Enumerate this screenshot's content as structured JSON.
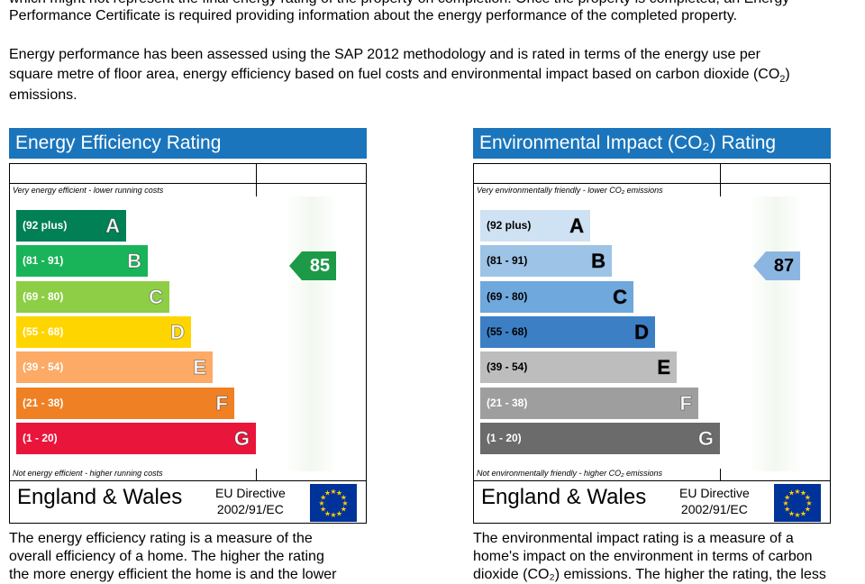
{
  "intro": {
    "line1": "which might not represent the final energy rating of the property on completion. Once the property is completed, an Energy",
    "line2": "Performance Certificate is required providing information about the energy performance of the completed property.",
    "line3": "Energy performance has been assessed using the SAP 2012 methodology and is rated in terms of the energy use per",
    "line4a": "square metre of floor area, energy efficiency based on fuel costs and environmental impact based on carbon dioxide (CO",
    "line4sub": "2",
    "line4b": ")",
    "line5": "emissions."
  },
  "charts": [
    {
      "title": "Energy Efficiency Rating",
      "top_label": "Very energy efficient - lower running costs",
      "bottom_label": "Not energy efficient - higher running costs",
      "score": "85",
      "score_color": "#1c9a48",
      "score_text_color": "#ffffff",
      "bands": [
        {
          "range": "(92 plus)",
          "letter": "A",
          "color": "#008054",
          "text": "#ffffff"
        },
        {
          "range": "(81 - 91)",
          "letter": "B",
          "color": "#19b459",
          "text": "#ffffff"
        },
        {
          "range": "(69 - 80)",
          "letter": "C",
          "color": "#8dce46",
          "text": "#ffffff"
        },
        {
          "range": "(55 - 68)",
          "letter": "D",
          "color": "#ffd500",
          "text": "#ffffff"
        },
        {
          "range": "(39 - 54)",
          "letter": "E",
          "color": "#fcaa65",
          "text": "#ffffff"
        },
        {
          "range": "(21 - 38)",
          "letter": "F",
          "color": "#ef8023",
          "text": "#ffffff"
        },
        {
          "range": "(1 - 20)",
          "letter": "G",
          "color": "#e9153b",
          "text": "#ffffff"
        }
      ],
      "region": "England & Wales",
      "directive_line1": "EU Directive",
      "directive_line2": "2002/91/EC",
      "desc_line1": "The energy efficiency rating is a measure of the",
      "desc_line2": "overall efficiency of a home. The higher the rating",
      "desc_line3": "the more energy efficient the home is and the lower"
    },
    {
      "title": "Environmental Impact (CO₂) Rating",
      "top_label": "Very environmentally friendly - lower CO₂ emissions",
      "bottom_label": "Not environmentally friendly - higher CO₂ emissions",
      "score": "87",
      "score_color": "#8cb6e2",
      "score_text_color": "#000000",
      "bands": [
        {
          "range": "(92 plus)",
          "letter": "A",
          "color": "#cfe2f3",
          "text": "#000000"
        },
        {
          "range": "(81 - 91)",
          "letter": "B",
          "color": "#9dc3e6",
          "text": "#000000"
        },
        {
          "range": "(69 - 80)",
          "letter": "C",
          "color": "#6fa8dc",
          "text": "#000000"
        },
        {
          "range": "(55 - 68)",
          "letter": "D",
          "color": "#3d7fc4",
          "text": "#000000"
        },
        {
          "range": "(39 - 54)",
          "letter": "E",
          "color": "#bdbdbd",
          "text": "#000000"
        },
        {
          "range": "(21 - 38)",
          "letter": "F",
          "color": "#9e9e9e",
          "text": "#ffffff"
        },
        {
          "range": "(1 - 20)",
          "letter": "G",
          "color": "#6b6b6b",
          "text": "#ffffff"
        }
      ],
      "region": "England & Wales",
      "directive_line1": "EU Directive",
      "directive_line2": "2002/91/EC",
      "desc_line1": "The environmental impact rating is a measure of a",
      "desc_line2": "home's impact on the environment in terms of carbon",
      "desc_line3": "dioxide (CO₂) emissions. The higher the rating, the less"
    }
  ]
}
